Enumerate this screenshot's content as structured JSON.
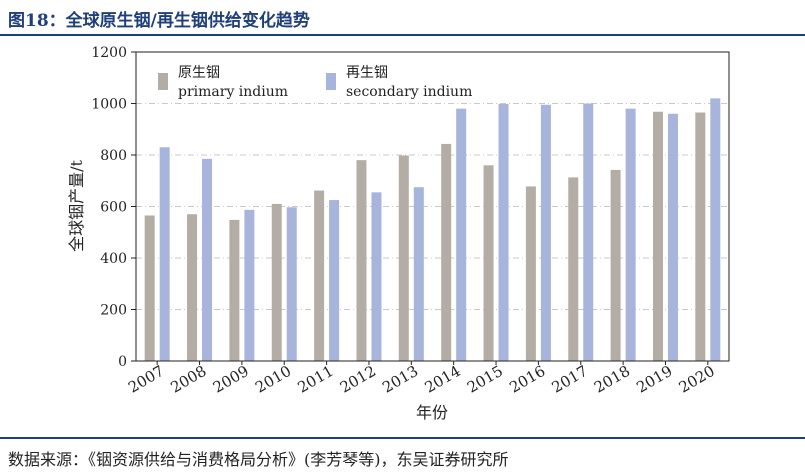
{
  "figure_title": "图18：全球原生铟/再生铟供给变化趋势",
  "source_note": "数据来源：《铟资源供给与消费格局分析》(李芳琴等)，东吴证券研究所",
  "colors": {
    "primary": "#b4ada6",
    "secondary": "#a7b5dc",
    "title": "#1f3f7a",
    "grid": "#c8c8c8"
  },
  "chart_data": {
    "type": "bar",
    "xlabel": "年份",
    "ylabel": "全球铟产量/t",
    "ylim": [
      0,
      1200
    ],
    "yticks": [
      0,
      200,
      400,
      600,
      800,
      1000,
      1200
    ],
    "grid": true,
    "legend_position": "top-left",
    "categories": [
      "2007",
      "2008",
      "2009",
      "2010",
      "2011",
      "2012",
      "2013",
      "2014",
      "2015",
      "2016",
      "2017",
      "2018",
      "2019",
      "2020"
    ],
    "series": [
      {
        "name_cn": "原生铟",
        "name_en": "primary indium",
        "color": "#b4ada6",
        "values": [
          565,
          570,
          548,
          610,
          662,
          780,
          798,
          843,
          760,
          678,
          713,
          742,
          968,
          965
        ]
      },
      {
        "name_cn": "再生铟",
        "name_en": "secondary indium",
        "color": "#a7b5dc",
        "values": [
          830,
          785,
          587,
          597,
          625,
          655,
          675,
          980,
          998,
          995,
          1000,
          980,
          960,
          1020
        ]
      }
    ]
  }
}
